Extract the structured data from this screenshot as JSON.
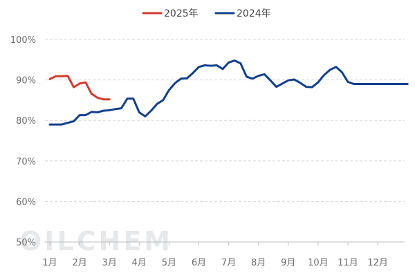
{
  "chart_data": {
    "type": "line",
    "watermark": "OILCHEM",
    "ylim": [
      50,
      100
    ],
    "yticks": [
      50,
      60,
      70,
      80,
      90,
      100
    ],
    "ytick_labels": [
      "50%",
      "60%",
      "70%",
      "80%",
      "90%",
      "100%"
    ],
    "categories": [
      "1月",
      "2月",
      "3月",
      "4月",
      "5月",
      "6月",
      "7月",
      "8月",
      "9月",
      "10月",
      "11月",
      "12月"
    ],
    "grid": true,
    "legend_position": "top-center",
    "series": [
      {
        "name": "2025年",
        "color": "#d43a2f",
        "x": [
          0.0,
          0.2,
          0.4,
          0.6,
          0.8,
          1.0,
          1.2,
          1.4,
          1.6,
          1.8,
          2.0
        ],
        "values": [
          90.2,
          90.9,
          90.9,
          91.0,
          88.2,
          89.1,
          89.4,
          86.6,
          85.6,
          85.2,
          85.2
        ]
      },
      {
        "name": "2024年",
        "color": "#123f8c",
        "x": [
          0.0,
          0.2,
          0.4,
          0.6,
          0.8,
          1.0,
          1.2,
          1.4,
          1.6,
          1.8,
          2.0,
          2.2,
          2.4,
          2.6,
          2.8,
          3.0,
          3.2,
          3.4,
          3.6,
          3.8,
          4.0,
          4.2,
          4.4,
          4.6,
          4.8,
          5.0,
          5.2,
          5.4,
          5.6,
          5.8,
          6.0,
          6.2,
          6.4,
          6.6,
          6.8,
          7.0,
          7.2,
          7.4,
          7.6,
          7.8,
          8.0,
          8.2,
          8.4,
          8.6,
          8.8,
          9.0,
          9.2,
          9.4,
          9.6,
          9.8,
          10.0,
          10.2,
          10.4,
          10.6,
          10.8,
          11.0,
          11.2,
          11.4,
          11.6,
          11.8,
          12.0
        ],
        "values": [
          79.0,
          79.0,
          79.0,
          79.4,
          79.8,
          81.3,
          81.3,
          82.1,
          82.0,
          82.4,
          82.5,
          82.8,
          83.0,
          85.4,
          85.4,
          82.0,
          81.0,
          82.4,
          84.1,
          85.0,
          87.5,
          89.2,
          90.3,
          90.4,
          91.7,
          93.2,
          93.6,
          93.5,
          93.6,
          92.7,
          94.3,
          94.8,
          94.1,
          90.8,
          90.3,
          91.0,
          91.4,
          89.9,
          88.3,
          89.1,
          89.9,
          90.1,
          89.3,
          88.3,
          88.2,
          89.4,
          91.2,
          92.5,
          93.2,
          91.9,
          89.5,
          89.0,
          89.0,
          89.0,
          89.0,
          89.0,
          89.0,
          89.0,
          89.0,
          89.0,
          89.0
        ]
      }
    ]
  }
}
